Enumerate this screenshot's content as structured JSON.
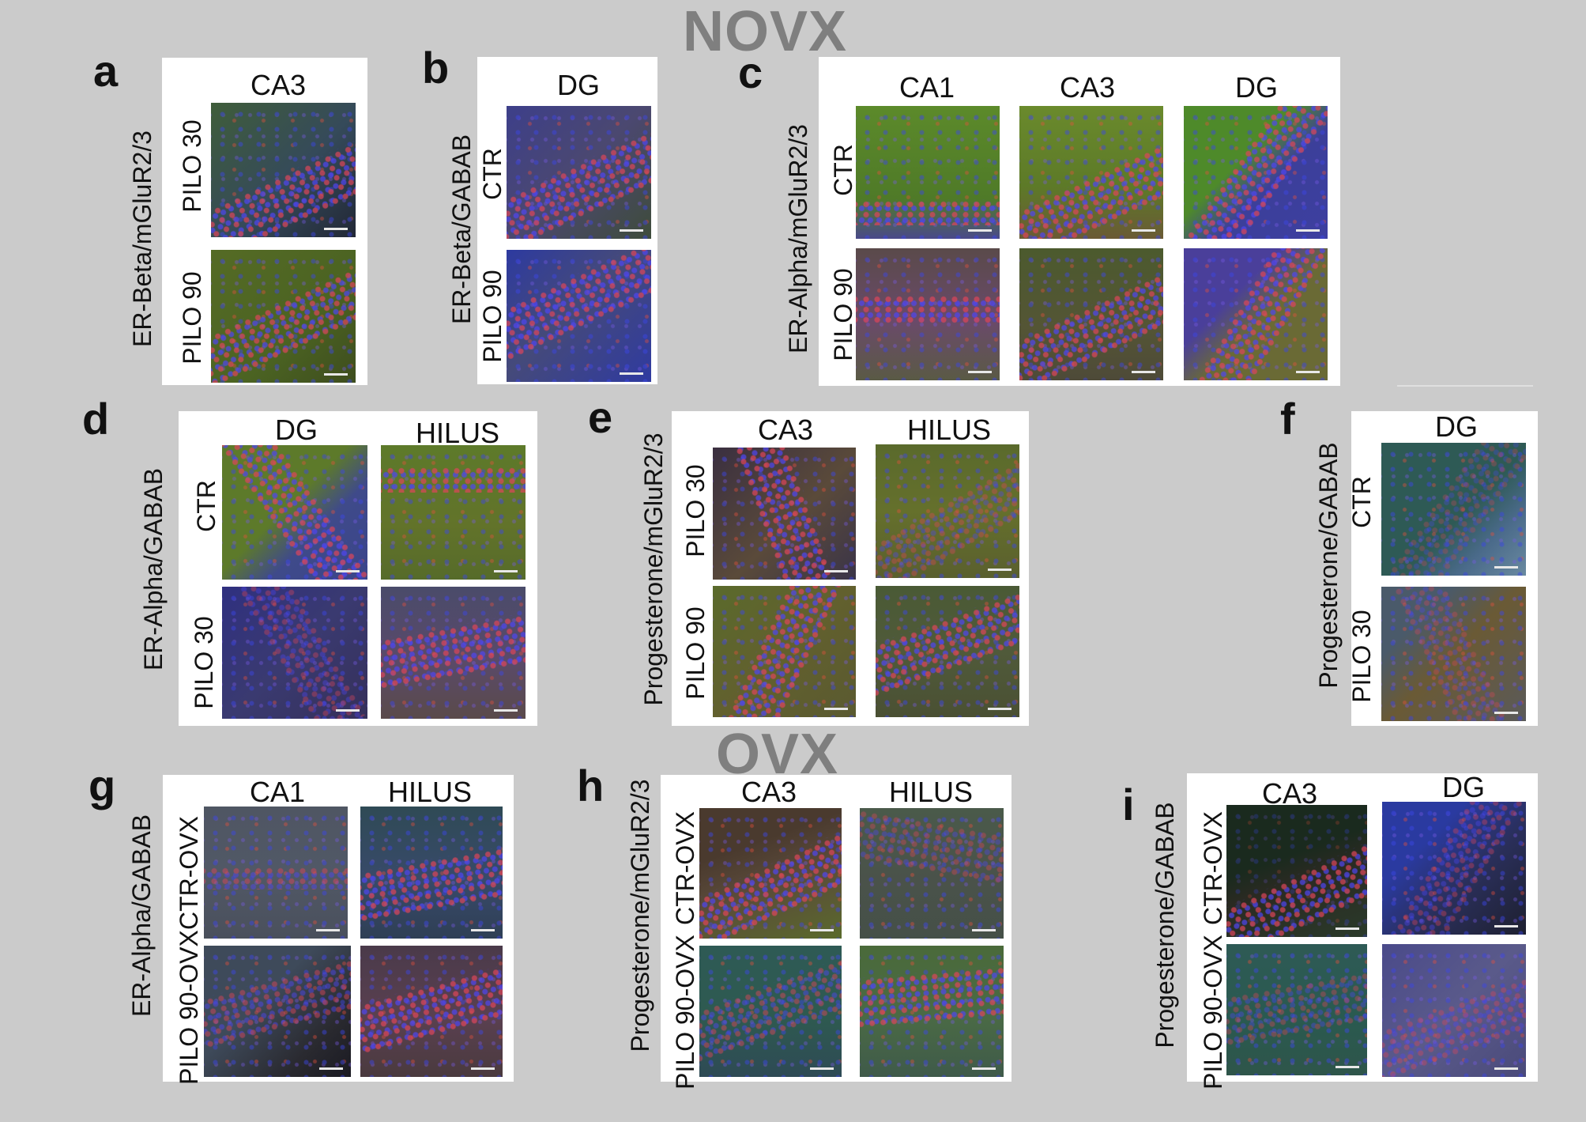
{
  "headers": {
    "novx": "NOVX",
    "ovx": "OVX"
  },
  "panels": {
    "a": {
      "letter": "a",
      "stain": "ER-Beta/mGluR2/3",
      "cols": [
        "CA3"
      ],
      "rows": [
        "PILO 30",
        "PILO 90"
      ]
    },
    "b": {
      "letter": "b",
      "stain": "ER-Beta/GABAB",
      "cols": [
        "DG"
      ],
      "rows": [
        "CTR",
        "PILO 90"
      ]
    },
    "c": {
      "letter": "c",
      "stain": "ER-Alpha/mGluR2/3",
      "cols": [
        "CA1",
        "CA3",
        "DG"
      ],
      "rows": [
        "CTR",
        "PILO 90"
      ]
    },
    "d": {
      "letter": "d",
      "stain": "ER-Alpha/GABAB",
      "cols": [
        "DG",
        "HILUS"
      ],
      "rows": [
        "CTR",
        "PILO 30"
      ]
    },
    "e": {
      "letter": "e",
      "stain": "Progesterone/mGluR2/3",
      "cols": [
        "CA3",
        "HILUS"
      ],
      "rows": [
        "PILO 30",
        "PILO 90"
      ]
    },
    "f": {
      "letter": "f",
      "stain": "Progesterone/GABAB",
      "cols": [
        "DG"
      ],
      "rows": [
        "CTR",
        "PILO 30"
      ]
    },
    "g": {
      "letter": "g",
      "stain": "ER-Alpha/GABAB",
      "cols": [
        "CA1",
        "HILUS"
      ],
      "rows": [
        "CTR-OVX",
        "PILO 90-OVX"
      ]
    },
    "h": {
      "letter": "h",
      "stain": "Progesterone/mGluR2/3",
      "cols": [
        "CA3",
        "HILUS"
      ],
      "rows": [
        "CTR-OVX",
        "PILO 90-OVX"
      ]
    },
    "i": {
      "letter": "i",
      "stain": "Progesterone/GABAB",
      "cols": [
        "CA3",
        "DG"
      ],
      "rows": [
        "CTR-OVX",
        "PILO 90-OVX"
      ]
    }
  },
  "image_colors": {
    "green": "#4e6b2a",
    "olive": "#5d6a35",
    "blue": "#2c3a9a",
    "purple": "#4a3f7a",
    "dark": "#2a2a3a",
    "teal": "#2e5a55",
    "brown": "#6a5a35",
    "grey": "#4f5663"
  }
}
